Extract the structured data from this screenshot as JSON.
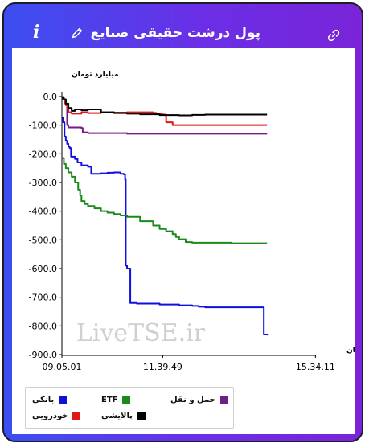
{
  "header": {
    "title": "پول درشت حقیقی صنایع",
    "info_label": "i"
  },
  "chart_data": {
    "type": "line",
    "ylabel": "میلیارد تومان",
    "xlabel": "زمان",
    "x_tick_labels": [
      "09.05.01",
      "11.39.49",
      "15.34.11"
    ],
    "y_ticks": [
      0,
      -100,
      -200,
      -300,
      -400,
      -500,
      -600,
      -700,
      -800,
      -900
    ],
    "y_tick_labels": [
      "0.0",
      "-100.0",
      "-200.0",
      "-300.0",
      "-400.0",
      "-500.0",
      "-600.0",
      "-700.0",
      "-800.0",
      "-900.0"
    ],
    "ylim": [
      -900,
      0
    ],
    "x_range_minutes": [
      0,
      390
    ],
    "x_tick_minutes": [
      0,
      154.8,
      389.2
    ],
    "watermark": "LiveTSE.ir",
    "legend_position": "bottom-left",
    "series": [
      {
        "name": "بانکی",
        "color": "#1010dd",
        "x": [
          0,
          2,
          4,
          6,
          8,
          10,
          12,
          14,
          20,
          24,
          30,
          40,
          45,
          50,
          60,
          70,
          80,
          90,
          95,
          97,
          98,
          100,
          105,
          110,
          115,
          150,
          180,
          200,
          210,
          220,
          300,
          310,
          315
        ],
        "y": [
          -75,
          -90,
          -140,
          -155,
          -165,
          -175,
          -180,
          -210,
          -218,
          -230,
          -240,
          -245,
          -270,
          -270,
          -268,
          -266,
          -265,
          -270,
          -272,
          -290,
          -590,
          -600,
          -720,
          -720,
          -722,
          -725,
          -728,
          -730,
          -733,
          -735,
          -735,
          -830,
          -833
        ]
      },
      {
        "name": "ETF",
        "color": "#1a8a1a",
        "x": [
          0,
          3,
          6,
          10,
          15,
          20,
          25,
          28,
          30,
          35,
          40,
          50,
          60,
          70,
          80,
          90,
          100,
          120,
          140,
          150,
          160,
          170,
          175,
          180,
          190,
          200,
          220,
          260,
          315
        ],
        "y": [
          -215,
          -235,
          -250,
          -265,
          -280,
          -300,
          -325,
          -345,
          -365,
          -375,
          -382,
          -390,
          -400,
          -405,
          -410,
          -415,
          -420,
          -435,
          -450,
          -462,
          -470,
          -480,
          -490,
          -498,
          -508,
          -510,
          -510,
          -512,
          -512
        ]
      },
      {
        "name": "حمل و نقل",
        "color": "#7a1a8a",
        "x": [
          0,
          3,
          6,
          8,
          10,
          30,
          32,
          40,
          100,
          200,
          315
        ],
        "y": [
          -5,
          -10,
          -30,
          -100,
          -108,
          -110,
          -125,
          -128,
          -130,
          -130,
          -130
        ]
      },
      {
        "name": "خودرویی",
        "color": "#e01818",
        "x": [
          0,
          5,
          8,
          10,
          15,
          30,
          40,
          60,
          80,
          100,
          130,
          140,
          145,
          150,
          155,
          160,
          170,
          200,
          250,
          315
        ],
        "y": [
          -10,
          -25,
          -40,
          -55,
          -60,
          -55,
          -58,
          -55,
          -56,
          -55,
          -55,
          -57,
          -60,
          -62,
          -63,
          -90,
          -100,
          -100,
          -100,
          -100
        ]
      },
      {
        "name": "پالایشی",
        "color": "#000000",
        "x": [
          0,
          3,
          6,
          10,
          15,
          20,
          30,
          40,
          60,
          80,
          100,
          120,
          150,
          180,
          200,
          220,
          240,
          270,
          315
        ],
        "y": [
          -5,
          -10,
          -25,
          -40,
          -50,
          -45,
          -48,
          -45,
          -55,
          -58,
          -60,
          -62,
          -65,
          -66,
          -64,
          -63,
          -63,
          -63,
          -63
        ]
      }
    ]
  },
  "legend": {
    "items": [
      "بانکی",
      "ETF",
      "حمل و نقل",
      "خودرویی",
      "پالایشی"
    ]
  }
}
